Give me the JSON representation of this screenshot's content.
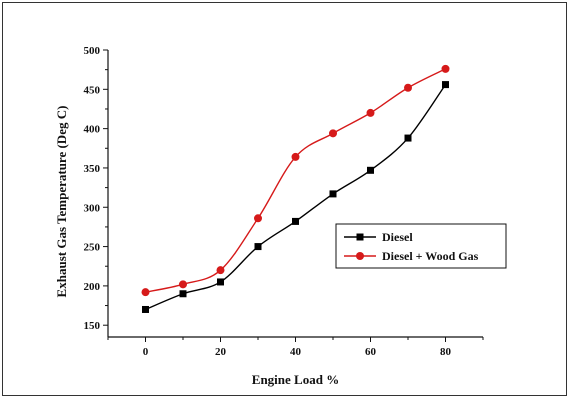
{
  "chart_data": {
    "type": "line",
    "title": "",
    "xlabel": "Engine Load %",
    "ylabel": "Exhaust Gas Temperature (Deg C)",
    "x": [
      0,
      10,
      20,
      30,
      40,
      50,
      60,
      70,
      80
    ],
    "xlim": [
      -10,
      90
    ],
    "ylim": [
      135,
      500
    ],
    "xticks": [
      0,
      20,
      40,
      60,
      80
    ],
    "yticks": [
      150,
      200,
      250,
      300,
      350,
      400,
      450,
      500
    ],
    "grid": false,
    "legend_position": "center-right",
    "series": [
      {
        "name": "Diesel",
        "color": "#000000",
        "marker": "square",
        "values": [
          170,
          190,
          205,
          250,
          282,
          317,
          347,
          388,
          456
        ]
      },
      {
        "name": "Diesel + Wood Gas",
        "color": "#d61a1a",
        "marker": "circle",
        "values": [
          192,
          202,
          220,
          286,
          364,
          394,
          420,
          452,
          476
        ]
      }
    ]
  }
}
